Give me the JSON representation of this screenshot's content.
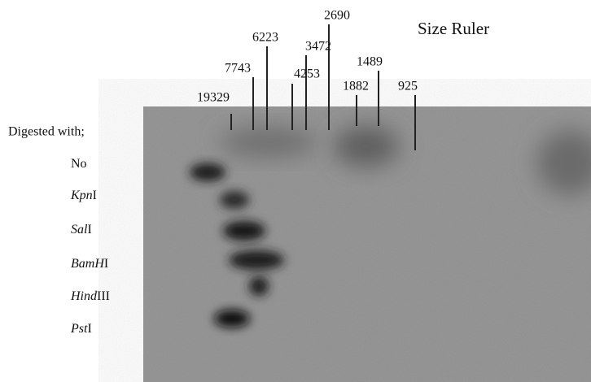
{
  "title": "Size Ruler",
  "row_header": "Digested with;",
  "markers": [
    "19329",
    "7743",
    "6223",
    "4253",
    "3472",
    "2690",
    "1882",
    "1489",
    "925"
  ],
  "lanes": [
    {
      "roman": "No"
    },
    {
      "italic": "Kpn",
      "roman": "I"
    },
    {
      "italic": "Sal",
      "roman": "I"
    },
    {
      "italic": "BamH",
      "roman": "I"
    },
    {
      "italic": "Hind",
      "roman": "III"
    },
    {
      "italic": "Pst",
      "roman": "I"
    }
  ]
}
